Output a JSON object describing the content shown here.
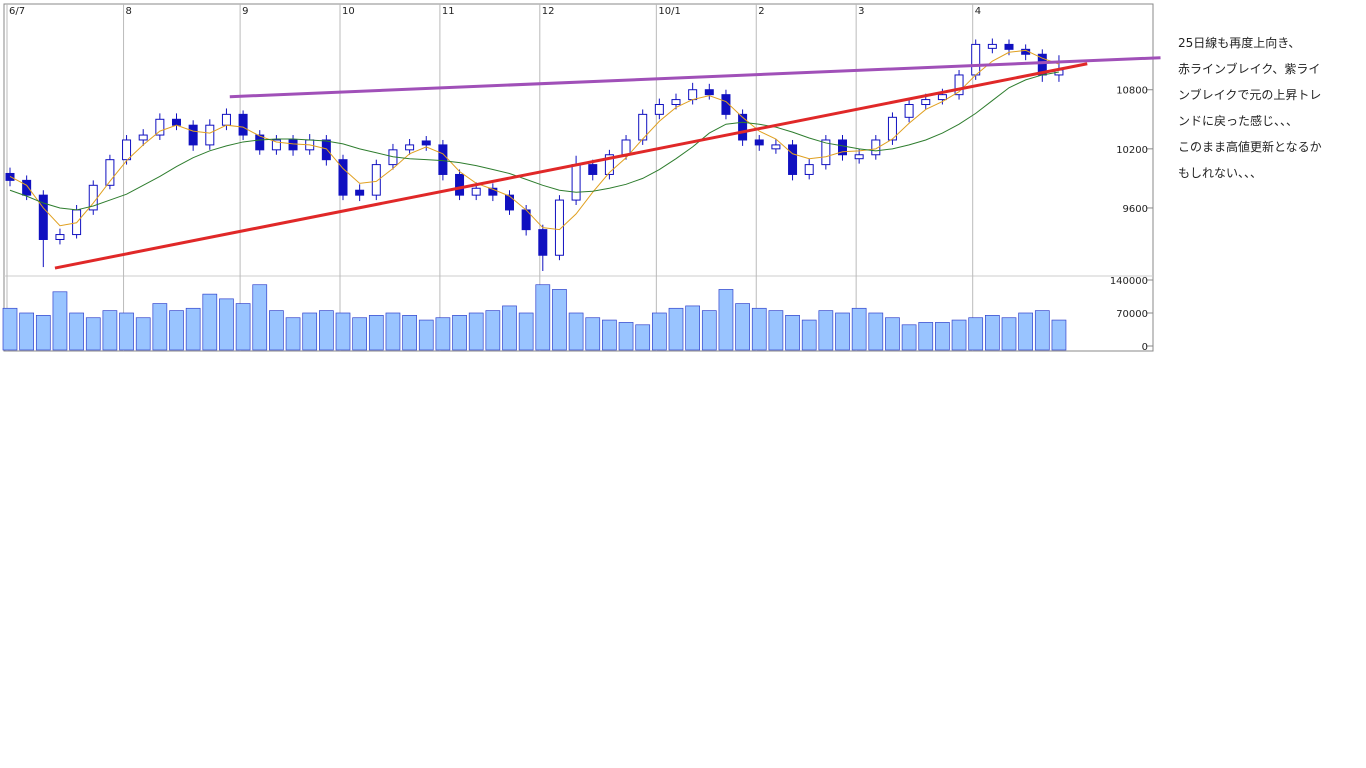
{
  "chart_data": {
    "type": "candlestick",
    "categories": [
      "6/7",
      null,
      null,
      null,
      null,
      null,
      null,
      "8",
      null,
      null,
      null,
      null,
      null,
      null,
      "9",
      null,
      null,
      null,
      null,
      null,
      "10",
      null,
      null,
      null,
      null,
      null,
      "11",
      null,
      null,
      null,
      null,
      null,
      "12",
      null,
      null,
      null,
      null,
      null,
      null,
      "10/1",
      null,
      null,
      null,
      null,
      null,
      "2",
      null,
      null,
      null,
      null,
      null,
      "3",
      null,
      null,
      null,
      null,
      null,
      null,
      "4",
      null,
      null,
      null,
      null,
      null
    ],
    "open": [
      9950,
      9880,
      9730,
      9280,
      9330,
      9580,
      9830,
      10090,
      10290,
      10340,
      10500,
      10440,
      10240,
      10440,
      10550,
      10340,
      10190,
      10290,
      10190,
      10290,
      10090,
      9780,
      9730,
      10040,
      10190,
      10280,
      10240,
      9940,
      9730,
      9800,
      9730,
      9580,
      9380,
      9120,
      9680,
      10040,
      9940,
      10140,
      10290,
      10550,
      10650,
      10700,
      10800,
      10750,
      10550,
      10290,
      10200,
      10240,
      9940,
      10040,
      10290,
      10100,
      10140,
      10290,
      10520,
      10650,
      10700,
      10750,
      10950,
      11220,
      11260,
      11210,
      11160,
      10950
    ],
    "high": [
      10010,
      9930,
      9780,
      9390,
      9630,
      9880,
      10140,
      10340,
      10400,
      10560,
      10560,
      10490,
      10500,
      10610,
      10590,
      10390,
      10340,
      10340,
      10350,
      10340,
      10140,
      9840,
      10090,
      10250,
      10300,
      10330,
      10290,
      9990,
      9860,
      9850,
      9780,
      9630,
      9430,
      9730,
      10130,
      10090,
      10190,
      10340,
      10600,
      10710,
      10760,
      10870,
      10860,
      10800,
      10600,
      10340,
      10300,
      10290,
      10100,
      10340,
      10340,
      10200,
      10340,
      10570,
      10700,
      10760,
      10810,
      11000,
      11310,
      11320,
      11310,
      11260,
      11210,
      11150
    ],
    "low": [
      9820,
      9680,
      9000,
      9230,
      9290,
      9530,
      9790,
      10040,
      10230,
      10290,
      10390,
      10180,
      10190,
      10390,
      10290,
      10140,
      10140,
      10130,
      10140,
      10030,
      9680,
      9670,
      9680,
      9990,
      10140,
      10180,
      9880,
      9680,
      9680,
      9670,
      9530,
      9320,
      8960,
      9070,
      9630,
      9880,
      9890,
      10090,
      10240,
      10500,
      10600,
      10650,
      10700,
      10500,
      10230,
      10180,
      10150,
      9880,
      9890,
      9990,
      10080,
      10050,
      10090,
      10240,
      10470,
      10600,
      10650,
      10700,
      10900,
      11170,
      11150,
      11100,
      10880,
      10880
    ],
    "close": [
      9880,
      9730,
      9280,
      9330,
      9580,
      9830,
      10090,
      10290,
      10340,
      10500,
      10440,
      10240,
      10440,
      10550,
      10340,
      10190,
      10290,
      10190,
      10290,
      10090,
      9730,
      9730,
      10040,
      10190,
      10240,
      10240,
      9940,
      9730,
      9800,
      9730,
      9580,
      9380,
      9120,
      9680,
      10040,
      9940,
      10140,
      10290,
      10550,
      10650,
      10700,
      10800,
      10750,
      10550,
      10290,
      10240,
      10240,
      9940,
      10040,
      10290,
      10140,
      10140,
      10290,
      10520,
      10650,
      10700,
      10750,
      10950,
      11260,
      11260,
      11210,
      11160,
      10950,
      11000
    ],
    "ma_short": {
      "color": "#e0a020",
      "values": [
        9920,
        9830,
        9600,
        9420,
        9450,
        9650,
        9870,
        10080,
        10240,
        10380,
        10440,
        10380,
        10360,
        10440,
        10420,
        10330,
        10270,
        10250,
        10240,
        10200,
        10000,
        9850,
        9870,
        10000,
        10150,
        10220,
        10150,
        9970,
        9850,
        9790,
        9720,
        9580,
        9400,
        9380,
        9540,
        9760,
        9960,
        10110,
        10300,
        10480,
        10620,
        10700,
        10740,
        10680,
        10520,
        10380,
        10300,
        10150,
        10100,
        10120,
        10170,
        10180,
        10200,
        10300,
        10460,
        10600,
        10680,
        10780,
        10950,
        11090,
        11180,
        11200,
        11120,
        11060
      ]
    },
    "ma_long": {
      "color": "#2e7d2e",
      "values": [
        9780,
        9720,
        9650,
        9600,
        9580,
        9620,
        9680,
        9740,
        9830,
        9920,
        10020,
        10110,
        10180,
        10230,
        10270,
        10290,
        10300,
        10300,
        10290,
        10280,
        10250,
        10200,
        10160,
        10120,
        10100,
        10090,
        10080,
        10060,
        10030,
        9990,
        9950,
        9890,
        9830,
        9780,
        9760,
        9770,
        9800,
        9840,
        9900,
        9990,
        10100,
        10220,
        10360,
        10450,
        10470,
        10450,
        10420,
        10370,
        10310,
        10260,
        10230,
        10200,
        10180,
        10200,
        10240,
        10290,
        10360,
        10450,
        10560,
        10690,
        10820,
        10900,
        10950,
        10980
      ]
    },
    "volume": [
      80000,
      70000,
      65000,
      115000,
      70000,
      60000,
      75000,
      70000,
      60000,
      90000,
      75000,
      80000,
      110000,
      100000,
      90000,
      130000,
      75000,
      60000,
      70000,
      75000,
      70000,
      60000,
      65000,
      70000,
      65000,
      55000,
      60000,
      65000,
      70000,
      75000,
      85000,
      70000,
      130000,
      120000,
      70000,
      60000,
      55000,
      50000,
      45000,
      70000,
      80000,
      85000,
      75000,
      120000,
      90000,
      80000,
      75000,
      65000,
      55000,
      75000,
      70000,
      80000,
      70000,
      60000,
      45000,
      50000,
      50000,
      55000,
      60000,
      65000,
      60000,
      70000,
      75000,
      55000
    ],
    "trend_lines": [
      {
        "color": "#e02828",
        "start": [
          2.7,
          8990
        ],
        "end": [
          64.7,
          11064
        ]
      },
      {
        "color": "#a050b8",
        "start": [
          13.2,
          10729
        ],
        "end": [
          69.1,
          11125
        ]
      }
    ],
    "up_color": "#ffffff",
    "down_color": "#1010c0",
    "volume_color": "#99c4ff",
    "ylim": [
      8950,
      11660
    ],
    "yticks": [
      9600,
      10200,
      10800
    ],
    "y2lim": [
      0,
      140000
    ],
    "y2ticks": [
      0,
      70000,
      140000
    ]
  },
  "annotation": [
    "25日線も再度上向き、",
    "赤ラインブレイク、紫ライ",
    "ンブレイクで元の上昇トレ",
    "ンドに戻った感じ、、、",
    "このまま高値更新となるか",
    "もしれない、、、"
  ]
}
